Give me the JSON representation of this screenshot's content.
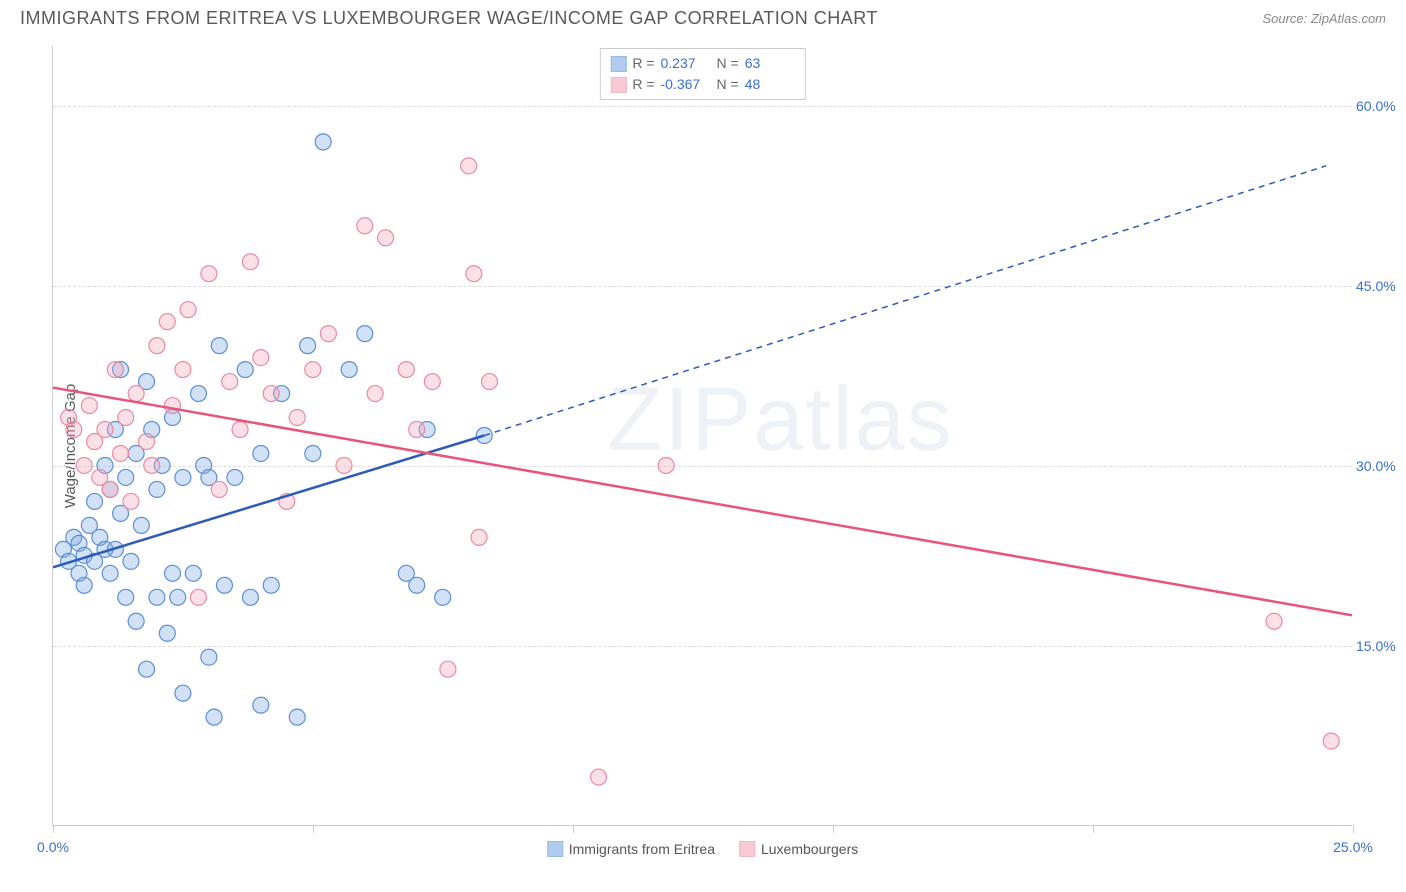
{
  "header": {
    "title": "IMMIGRANTS FROM ERITREA VS LUXEMBOURGER WAGE/INCOME GAP CORRELATION CHART",
    "source": "Source: ZipAtlas.com"
  },
  "chart": {
    "type": "scatter",
    "ylabel": "Wage/Income Gap",
    "background_color": "#ffffff",
    "grid_color": "#dddddd",
    "axis_color": "#cccccc",
    "tick_color": "#3b6fd4",
    "label_color": "#5a5a5a",
    "xlim": [
      0,
      25
    ],
    "ylim": [
      0,
      65
    ],
    "yticks": [
      15,
      30,
      45,
      60
    ],
    "ytick_labels": [
      "15.0%",
      "30.0%",
      "45.0%",
      "60.0%"
    ],
    "xticks": [
      0,
      5,
      10,
      15,
      20,
      25
    ],
    "xtick_labels": [
      "0.0%",
      "",
      "",
      "",
      "",
      "25.0%"
    ],
    "marker_radius": 8,
    "marker_stroke_width": 1.2,
    "marker_fill_opacity": 0.35,
    "watermark": "ZIPatlas",
    "series": [
      {
        "name": "Immigrants from Eritrea",
        "fill_color": "#7ea9e3",
        "stroke_color": "#5b8fd6",
        "line_color": "#2e5bb8",
        "R": "0.237",
        "N": "63",
        "trend": {
          "x1": 0,
          "y1": 21.5,
          "x2_solid": 8.3,
          "y2_solid": 32.5,
          "x2_dash": 24.5,
          "y2_dash": 55
        },
        "points": [
          [
            0.2,
            23
          ],
          [
            0.3,
            22
          ],
          [
            0.4,
            24
          ],
          [
            0.5,
            21
          ],
          [
            0.5,
            23.5
          ],
          [
            0.6,
            22.5
          ],
          [
            0.6,
            20
          ],
          [
            0.7,
            25
          ],
          [
            0.8,
            22
          ],
          [
            0.8,
            27
          ],
          [
            0.9,
            24
          ],
          [
            1.0,
            23
          ],
          [
            1.0,
            30
          ],
          [
            1.1,
            21
          ],
          [
            1.1,
            28
          ],
          [
            1.2,
            23
          ],
          [
            1.2,
            33
          ],
          [
            1.3,
            26
          ],
          [
            1.3,
            38
          ],
          [
            1.4,
            19
          ],
          [
            1.4,
            29
          ],
          [
            1.5,
            22
          ],
          [
            1.6,
            31
          ],
          [
            1.6,
            17
          ],
          [
            1.7,
            25
          ],
          [
            1.8,
            37
          ],
          [
            1.8,
            13
          ],
          [
            1.9,
            33
          ],
          [
            2.0,
            19
          ],
          [
            2.0,
            28
          ],
          [
            2.1,
            30
          ],
          [
            2.2,
            16
          ],
          [
            2.3,
            34
          ],
          [
            2.3,
            21
          ],
          [
            2.4,
            19
          ],
          [
            2.5,
            29
          ],
          [
            2.5,
            11
          ],
          [
            2.7,
            21
          ],
          [
            2.8,
            36
          ],
          [
            2.9,
            30
          ],
          [
            3.0,
            14
          ],
          [
            3.0,
            29
          ],
          [
            3.1,
            9
          ],
          [
            3.2,
            40
          ],
          [
            3.3,
            20
          ],
          [
            3.5,
            29
          ],
          [
            3.7,
            38
          ],
          [
            3.8,
            19
          ],
          [
            4.0,
            31
          ],
          [
            4.0,
            10
          ],
          [
            4.2,
            20
          ],
          [
            4.4,
            36
          ],
          [
            4.7,
            9
          ],
          [
            4.9,
            40
          ],
          [
            5.0,
            31
          ],
          [
            5.2,
            57
          ],
          [
            5.7,
            38
          ],
          [
            6.0,
            41
          ],
          [
            6.8,
            21
          ],
          [
            7.0,
            20
          ],
          [
            7.2,
            33
          ],
          [
            7.5,
            19
          ],
          [
            8.3,
            32.5
          ]
        ]
      },
      {
        "name": "Luxembourgers",
        "fill_color": "#f4a8ba",
        "stroke_color": "#ea8aa2",
        "line_color": "#e8547a",
        "R": "-0.367",
        "N": "48",
        "trend": {
          "x1": 0,
          "y1": 36.5,
          "x2_solid": 25,
          "y2_solid": 17.5
        },
        "points": [
          [
            0.3,
            34
          ],
          [
            0.4,
            33
          ],
          [
            0.6,
            30
          ],
          [
            0.7,
            35
          ],
          [
            0.8,
            32
          ],
          [
            0.9,
            29
          ],
          [
            1.0,
            33
          ],
          [
            1.1,
            28
          ],
          [
            1.2,
            38
          ],
          [
            1.3,
            31
          ],
          [
            1.4,
            34
          ],
          [
            1.5,
            27
          ],
          [
            1.6,
            36
          ],
          [
            1.8,
            32
          ],
          [
            1.9,
            30
          ],
          [
            2.0,
            40
          ],
          [
            2.2,
            42
          ],
          [
            2.3,
            35
          ],
          [
            2.5,
            38
          ],
          [
            2.6,
            43
          ],
          [
            2.8,
            19
          ],
          [
            3.0,
            46
          ],
          [
            3.2,
            28
          ],
          [
            3.4,
            37
          ],
          [
            3.6,
            33
          ],
          [
            3.8,
            47
          ],
          [
            4.0,
            39
          ],
          [
            4.2,
            36
          ],
          [
            4.5,
            27
          ],
          [
            4.7,
            34
          ],
          [
            5.0,
            38
          ],
          [
            5.3,
            41
          ],
          [
            5.6,
            30
          ],
          [
            6.0,
            50
          ],
          [
            6.2,
            36
          ],
          [
            6.4,
            49
          ],
          [
            6.8,
            38
          ],
          [
            7.0,
            33
          ],
          [
            7.3,
            37
          ],
          [
            7.6,
            13
          ],
          [
            8.0,
            55
          ],
          [
            8.1,
            46
          ],
          [
            8.2,
            24
          ],
          [
            8.4,
            37
          ],
          [
            10.5,
            4
          ],
          [
            11.8,
            30
          ],
          [
            23.5,
            17
          ],
          [
            24.6,
            7
          ]
        ]
      }
    ]
  },
  "legend_bottom": [
    {
      "label": "Immigrants from Eritrea",
      "fill": "#7ea9e3",
      "stroke": "#5b8fd6"
    },
    {
      "label": "Luxembourgers",
      "fill": "#f4a8ba",
      "stroke": "#ea8aa2"
    }
  ]
}
